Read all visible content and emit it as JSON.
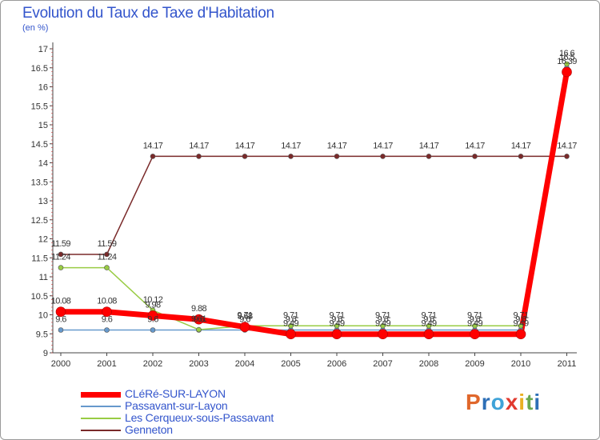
{
  "header": {
    "title": "Evolution du Taux de Taxe d'Habitation",
    "subtitle": "(en %)"
  },
  "logo": {
    "text": "Proxiti",
    "letters": [
      {
        "ch": "P",
        "color": "#e0672b"
      },
      {
        "ch": "r",
        "color": "#2d6fb7"
      },
      {
        "ch": "o",
        "color": "#3fa3d8"
      },
      {
        "ch": "x",
        "color": "#e13a2f"
      },
      {
        "ch": "i",
        "color": "#e9b022"
      },
      {
        "ch": "t",
        "color": "#6aa84f"
      },
      {
        "ch": "i",
        "color": "#2d6fb7"
      }
    ]
  },
  "chart_data": {
    "type": "line",
    "title": "Evolution du Taux de Taxe d'Habitation",
    "ylabel": "(en %)",
    "xlabel": "",
    "x": [
      "2000",
      "2001",
      "2002",
      "2003",
      "2004",
      "2005",
      "2006",
      "2007",
      "2008",
      "2009",
      "2010",
      "2011"
    ],
    "ylim": [
      9,
      17
    ],
    "yticks": [
      "9",
      "9.5",
      "10",
      "10.5",
      "11",
      "11.5",
      "12",
      "12.5",
      "13",
      "13.5",
      "14",
      "14.5",
      "15",
      "15.5",
      "16",
      "16.5",
      "17"
    ],
    "grid": false,
    "legend_position": "bottom-left",
    "series": [
      {
        "name": "CLéRé-SUR-LAYON",
        "color": "#ff0000",
        "values": [
          10.08,
          10.08,
          9.98,
          9.88,
          9.68,
          9.49,
          9.49,
          9.49,
          9.49,
          9.49,
          9.49,
          16.39
        ],
        "labels": [
          "10.08",
          "10.08",
          "9.98",
          "9.88",
          "9.68",
          "9.49",
          "9.49",
          "9.49",
          "9.49",
          "9.49",
          "9.49",
          "16.39"
        ]
      },
      {
        "name": "Passavant-sur-Layon",
        "color": "#6699cc",
        "values": [
          9.6,
          9.6,
          9.6,
          9.6,
          9.6,
          9.6,
          9.6,
          9.6,
          9.6,
          9.6,
          9.6,
          16.5
        ],
        "labels": [
          "9.6",
          "9.6",
          "9.6",
          "9.6",
          "9.6",
          "9.6",
          "9.6",
          "9.6",
          "9.6",
          "9.6",
          "9.6",
          "16.5"
        ]
      },
      {
        "name": "Les Cerqueux-sous-Passavant",
        "color": "#99cc44",
        "values": [
          11.24,
          11.24,
          10.12,
          9.61,
          9.71,
          9.71,
          9.71,
          9.71,
          9.71,
          9.71,
          9.71,
          16.6
        ],
        "labels": [
          "11.24",
          "11.24",
          "10.12",
          "9.61",
          "9.71",
          "9.71",
          "9.71",
          "9.71",
          "9.71",
          "9.71",
          "9.71",
          "16.6"
        ]
      },
      {
        "name": "Genneton",
        "color": "#7a2a2a",
        "values": [
          11.59,
          11.59,
          14.17,
          14.17,
          14.17,
          14.17,
          14.17,
          14.17,
          14.17,
          14.17,
          14.17,
          14.17
        ],
        "labels": [
          "11.59",
          "11.59",
          "14.17",
          "14.17",
          "14.17",
          "14.17",
          "14.17",
          "14.17",
          "14.17",
          "14.17",
          "14.17",
          "14.17"
        ]
      }
    ]
  }
}
